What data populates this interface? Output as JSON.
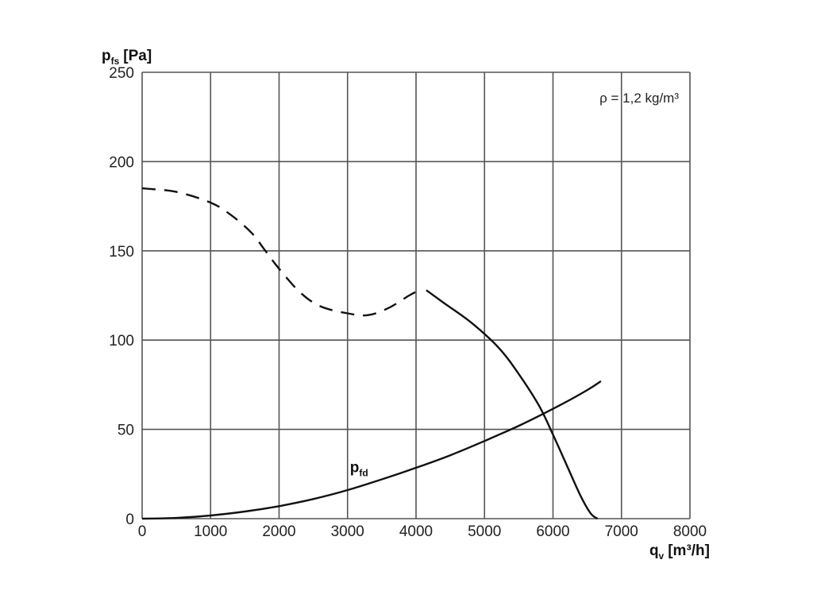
{
  "chart_data": {
    "type": "line",
    "title": "",
    "x_axis": {
      "label_main": "q",
      "label_sub": "v",
      "label_unit": "[m³/h]",
      "range": [
        0,
        8000
      ],
      "ticks": [
        "0",
        "1000",
        "2000",
        "3000",
        "4000",
        "5000",
        "6000",
        "7000",
        "8000"
      ]
    },
    "y_axis": {
      "label_main": "p",
      "label_sub": "fs",
      "label_unit": "[Pa]",
      "range": [
        0,
        250
      ],
      "ticks": [
        "0",
        "50",
        "100",
        "150",
        "200",
        "250"
      ]
    },
    "grid": true,
    "annotation": "ρ = 1,2 kg/m³",
    "series": [
      {
        "style": "dashed",
        "points": [
          [
            0,
            185
          ],
          [
            500,
            183
          ],
          [
            1000,
            177
          ],
          [
            1300,
            170
          ],
          [
            1600,
            160
          ],
          [
            1800,
            150
          ],
          [
            2000,
            140
          ],
          [
            2300,
            127
          ],
          [
            2600,
            119
          ],
          [
            3000,
            115
          ],
          [
            3300,
            114
          ],
          [
            3600,
            118
          ],
          [
            3900,
            125
          ],
          [
            4100,
            129
          ]
        ]
      },
      {
        "style": "solid",
        "points": [
          [
            4150,
            128
          ],
          [
            4400,
            121
          ],
          [
            4800,
            110
          ],
          [
            5200,
            96
          ],
          [
            5500,
            81
          ],
          [
            5800,
            63
          ],
          [
            6000,
            47
          ],
          [
            6200,
            30
          ],
          [
            6400,
            13
          ],
          [
            6550,
            3
          ],
          [
            6650,
            0
          ]
        ]
      },
      {
        "label_main": "p",
        "label_sub": "fd",
        "label_at": [
          3000,
          26
        ],
        "style": "solid",
        "points": [
          [
            0,
            0
          ],
          [
            500,
            0.4
          ],
          [
            1000,
            1.8
          ],
          [
            1500,
            4.0
          ],
          [
            2000,
            7.0
          ],
          [
            2500,
            11.0
          ],
          [
            3000,
            16.0
          ],
          [
            3500,
            22.0
          ],
          [
            4000,
            28.5
          ],
          [
            4500,
            35.5
          ],
          [
            5000,
            43.5
          ],
          [
            5500,
            52.0
          ],
          [
            6000,
            61.5
          ],
          [
            6500,
            72.0
          ],
          [
            6700,
            77.0
          ]
        ]
      }
    ]
  }
}
